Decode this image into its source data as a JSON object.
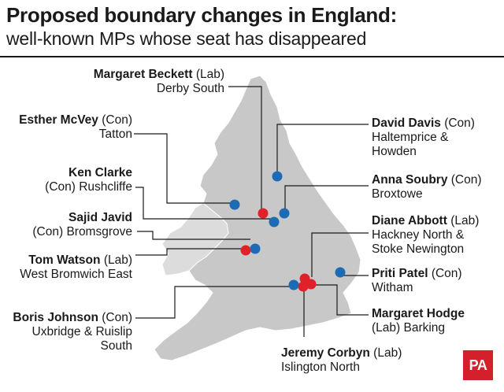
{
  "header": {
    "title": "Proposed boundary changes in England:",
    "subtitle": "well-known MPs whose seat has disappeared"
  },
  "colors": {
    "lab": "#e0202a",
    "con": "#1d6bb5",
    "land": "#c8c8c8",
    "leader": "#1a1a1a"
  },
  "mps": [
    {
      "id": "beckett",
      "name": "Margaret Beckett",
      "party": "(Lab)",
      "seat": "Derby South",
      "party_code": "lab"
    },
    {
      "id": "mcvey",
      "name": "Esther McVey",
      "party": "(Con)",
      "seat": "Tatton",
      "party_code": "con"
    },
    {
      "id": "clarke",
      "name": "Ken Clarke",
      "party": "(Con) Rushcliffe",
      "seat": "",
      "party_code": "con"
    },
    {
      "id": "javid",
      "name": "Sajid Javid",
      "party": "(Con) Bromsgrove",
      "seat": "",
      "party_code": "con"
    },
    {
      "id": "watson",
      "name": "Tom Watson",
      "party": "(Lab)",
      "seat": "West Bromwich East",
      "party_code": "lab"
    },
    {
      "id": "johnson",
      "name": "Boris Johnson",
      "party": "(Con)",
      "seat": "Uxbridge & Ruislip",
      "seat2": "South",
      "party_code": "con"
    },
    {
      "id": "davis",
      "name": "David Davis",
      "party": "(Con)",
      "seat": "Haltemprice &",
      "seat2": "Howden",
      "party_code": "con"
    },
    {
      "id": "soubry",
      "name": "Anna Soubry",
      "party": "(Con)",
      "seat": "Broxtowe",
      "party_code": "con"
    },
    {
      "id": "abbott",
      "name": "Diane Abbott",
      "party": "(Lab)",
      "seat": "Hackney North &",
      "seat2": "Stoke Newington",
      "party_code": "lab"
    },
    {
      "id": "patel",
      "name": "Priti Patel",
      "party": "(Con)",
      "seat": "Witham",
      "party_code": "con"
    },
    {
      "id": "hodge",
      "name": "Margaret Hodge",
      "party": "",
      "seat": "(Lab) Barking",
      "party_code": "lab"
    },
    {
      "id": "corbyn",
      "name": "Jeremy Corbyn",
      "party": "(Lab)",
      "seat": "Islington North",
      "party_code": "lab"
    }
  ],
  "logo": "PA"
}
